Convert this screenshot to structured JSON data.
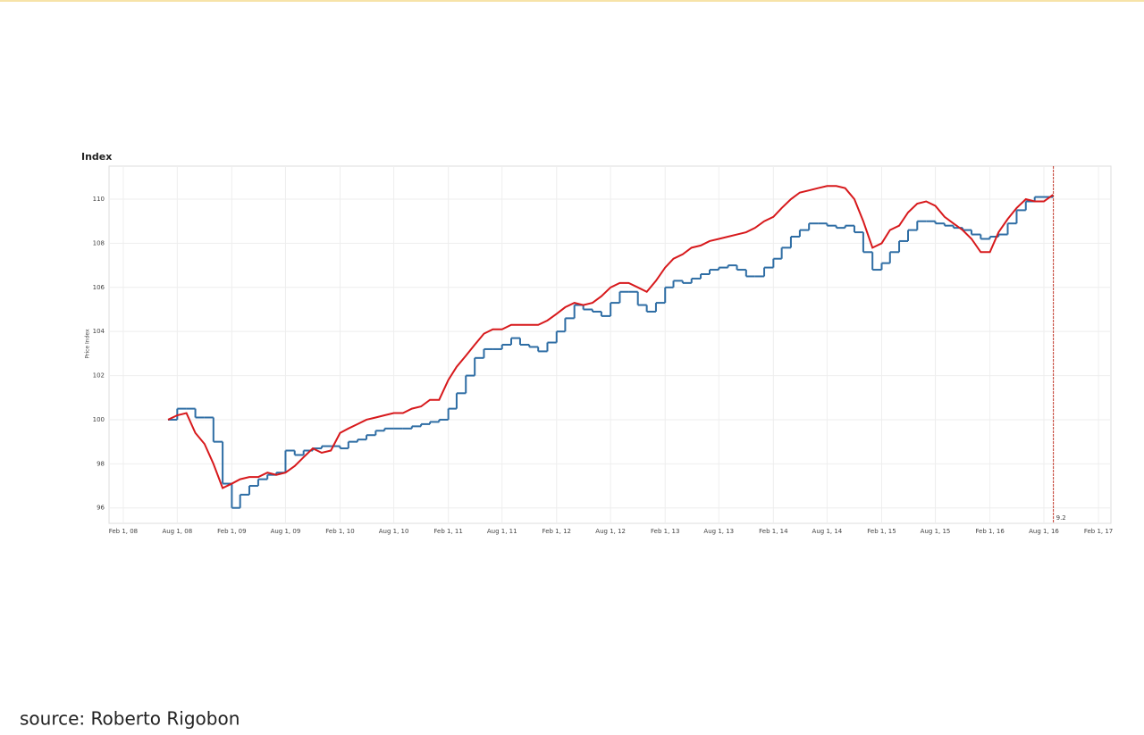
{
  "chart_data": {
    "type": "line",
    "title": "Index",
    "y_label": "Price Index",
    "x": [
      "2008-07-01",
      "2008-08-01",
      "2008-09-01",
      "2008-10-01",
      "2008-11-01",
      "2008-12-01",
      "2009-01-01",
      "2009-02-01",
      "2009-03-01",
      "2009-04-01",
      "2009-05-01",
      "2009-06-01",
      "2009-07-01",
      "2009-08-01",
      "2009-09-01",
      "2009-10-01",
      "2009-11-01",
      "2009-12-01",
      "2010-01-01",
      "2010-02-01",
      "2010-03-01",
      "2010-04-01",
      "2010-05-01",
      "2010-06-01",
      "2010-07-01",
      "2010-08-01",
      "2010-09-01",
      "2010-10-01",
      "2010-11-01",
      "2010-12-01",
      "2011-01-01",
      "2011-02-01",
      "2011-03-01",
      "2011-04-01",
      "2011-05-01",
      "2011-06-01",
      "2011-07-01",
      "2011-08-01",
      "2011-09-01",
      "2011-10-01",
      "2011-11-01",
      "2011-12-01",
      "2012-01-01",
      "2012-02-01",
      "2012-03-01",
      "2012-04-01",
      "2012-05-01",
      "2012-06-01",
      "2012-07-01",
      "2012-08-01",
      "2012-09-01",
      "2012-10-01",
      "2012-11-01",
      "2012-12-01",
      "2013-01-01",
      "2013-02-01",
      "2013-03-01",
      "2013-04-01",
      "2013-05-01",
      "2013-06-01",
      "2013-07-01",
      "2013-08-01",
      "2013-09-01",
      "2013-10-01",
      "2013-11-01",
      "2013-12-01",
      "2014-01-01",
      "2014-02-01",
      "2014-03-01",
      "2014-04-01",
      "2014-05-01",
      "2014-06-01",
      "2014-07-01",
      "2014-08-01",
      "2014-09-01",
      "2014-10-01",
      "2014-11-01",
      "2014-12-01",
      "2015-01-01",
      "2015-02-01",
      "2015-03-01",
      "2015-04-01",
      "2015-05-01",
      "2015-06-01",
      "2015-07-01",
      "2015-08-01",
      "2015-09-01",
      "2015-10-01",
      "2015-11-01",
      "2015-12-01",
      "2016-01-01",
      "2016-02-01",
      "2016-03-01",
      "2016-04-01",
      "2016-05-01",
      "2016-06-01",
      "2016-07-01",
      "2016-08-01",
      "2016-09-01"
    ],
    "series": [
      {
        "color": "#2e6da4",
        "step": true,
        "values": [
          100.0,
          100.5,
          100.5,
          100.1,
          100.1,
          99.0,
          97.1,
          96.0,
          96.6,
          97.0,
          97.3,
          97.5,
          97.6,
          98.6,
          98.4,
          98.6,
          98.7,
          98.8,
          98.8,
          98.7,
          99.0,
          99.1,
          99.3,
          99.5,
          99.6,
          99.6,
          99.6,
          99.7,
          99.8,
          99.9,
          100.0,
          100.5,
          101.2,
          102.0,
          102.8,
          103.2,
          103.2,
          103.4,
          103.7,
          103.4,
          103.3,
          103.1,
          103.5,
          104.0,
          104.6,
          105.2,
          105.0,
          104.9,
          104.7,
          105.3,
          105.8,
          105.8,
          105.2,
          104.9,
          105.3,
          106.0,
          106.3,
          106.2,
          106.4,
          106.6,
          106.8,
          106.9,
          107.0,
          106.8,
          106.5,
          106.5,
          106.9,
          107.3,
          107.8,
          108.3,
          108.6,
          108.9,
          108.9,
          108.8,
          108.7,
          108.8,
          108.5,
          107.6,
          106.8,
          107.1,
          107.6,
          108.1,
          108.6,
          109.0,
          109.0,
          108.9,
          108.8,
          108.7,
          108.6,
          108.4,
          108.2,
          108.3,
          108.4,
          108.9,
          109.5,
          109.9,
          110.1,
          110.1,
          null
        ]
      },
      {
        "color": "#d7191c",
        "step": false,
        "values": [
          100.0,
          100.2,
          100.3,
          99.4,
          98.9,
          98.0,
          96.9,
          97.1,
          97.3,
          97.4,
          97.4,
          97.6,
          97.5,
          97.6,
          97.9,
          98.3,
          98.7,
          98.5,
          98.6,
          99.4,
          99.6,
          99.8,
          100.0,
          100.1,
          100.2,
          100.3,
          100.3,
          100.5,
          100.6,
          100.9,
          100.9,
          101.8,
          102.4,
          102.9,
          103.4,
          103.9,
          104.1,
          104.1,
          104.3,
          104.3,
          104.3,
          104.3,
          104.5,
          104.8,
          105.1,
          105.3,
          105.2,
          105.3,
          105.6,
          106.0,
          106.2,
          106.2,
          106.0,
          105.8,
          106.3,
          106.9,
          107.3,
          107.5,
          107.8,
          107.9,
          108.1,
          108.2,
          108.3,
          108.4,
          108.5,
          108.7,
          109.0,
          109.2,
          109.6,
          110.0,
          110.3,
          110.4,
          110.5,
          110.6,
          110.6,
          110.5,
          110.0,
          109.0,
          107.8,
          108.0,
          108.6,
          108.8,
          109.4,
          109.8,
          109.9,
          109.7,
          109.2,
          108.9,
          108.6,
          108.2,
          107.6,
          107.6,
          108.5,
          109.1,
          109.6,
          110.0,
          109.9,
          109.9,
          110.2
        ]
      }
    ],
    "xlim": [
      "2007-12-15",
      "2017-03-15"
    ],
    "xticks": [
      {
        "value": "2008-02-01",
        "label": "Feb 1, 08"
      },
      {
        "value": "2008-08-01",
        "label": "Aug 1, 08"
      },
      {
        "value": "2009-02-01",
        "label": "Feb 1, 09"
      },
      {
        "value": "2009-08-01",
        "label": "Aug 1, 09"
      },
      {
        "value": "2010-02-01",
        "label": "Feb 1, 10"
      },
      {
        "value": "2010-08-01",
        "label": "Aug 1, 10"
      },
      {
        "value": "2011-02-01",
        "label": "Feb 1, 11"
      },
      {
        "value": "2011-08-01",
        "label": "Aug 1, 11"
      },
      {
        "value": "2012-02-01",
        "label": "Feb 1, 12"
      },
      {
        "value": "2012-08-01",
        "label": "Aug 1, 12"
      },
      {
        "value": "2013-02-01",
        "label": "Feb 1, 13"
      },
      {
        "value": "2013-08-01",
        "label": "Aug 1, 13"
      },
      {
        "value": "2014-02-01",
        "label": "Feb 1, 14"
      },
      {
        "value": "2014-08-01",
        "label": "Aug 1, 14"
      },
      {
        "value": "2015-02-01",
        "label": "Feb 1, 15"
      },
      {
        "value": "2015-08-01",
        "label": "Aug 1, 15"
      },
      {
        "value": "2016-02-01",
        "label": "Feb 1, 16"
      },
      {
        "value": "2016-08-01",
        "label": "Aug 1, 16"
      },
      {
        "value": "2017-02-01",
        "label": "Feb 1, 17"
      }
    ],
    "ylim": [
      95.3,
      111.5
    ],
    "yticks": [
      96,
      98,
      100,
      102,
      104,
      106,
      108,
      110
    ],
    "grid": true,
    "annotation": {
      "text": "9.2",
      "x": "2016-09-02",
      "color": "#c0392b"
    }
  },
  "source": "source:  Roberto Rigobon"
}
